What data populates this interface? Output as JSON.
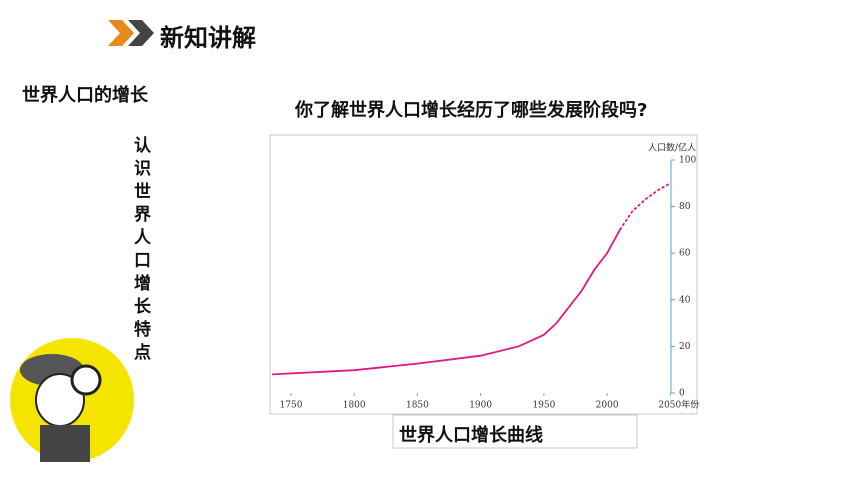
{
  "header": {
    "title": "新知讲解"
  },
  "section_title": "世界人口的增长",
  "side_note": "认识世界人口增长特点",
  "question": "你了解世界人口增长经历了哪些发展阶段吗?",
  "caption": "世界人口增长曲线",
  "chart_data": {
    "type": "line",
    "y_axis_label": "人口数/亿人",
    "x": [
      1735,
      1800,
      1850,
      1900,
      1930,
      1950,
      1960,
      1970,
      1980,
      1990,
      2000,
      2010,
      2020,
      2030,
      2040,
      2050
    ],
    "series": [
      {
        "color": "#e0187f",
        "style": "solid",
        "values": [
          8,
          9.8,
          12.6,
          16,
          20,
          25,
          30,
          37,
          44,
          53,
          60,
          70,
          null,
          null,
          null,
          null
        ]
      },
      {
        "color": "#e0187f",
        "style": "dashed",
        "values": [
          null,
          null,
          null,
          null,
          null,
          null,
          null,
          null,
          null,
          null,
          null,
          70,
          78,
          83,
          87,
          90
        ]
      }
    ],
    "xlim": [
      1735,
      2060
    ],
    "xticks": [
      1750,
      1800,
      1850,
      1900,
      1950,
      2000,
      {
        "value": 2050,
        "label": "2050年份"
      }
    ],
    "ylim": [
      0,
      100
    ],
    "yticks": [
      0,
      20,
      40,
      60,
      80,
      100
    ],
    "grid": false
  }
}
